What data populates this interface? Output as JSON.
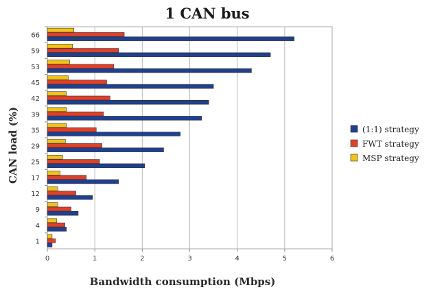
{
  "chart_data": {
    "type": "bar",
    "orientation": "horizontal",
    "title": "1 CAN bus",
    "xlabel": "Bandwidth consumption (Mbps)",
    "ylabel": "CAN load (%)",
    "categories": [
      "1",
      "4",
      "9",
      "12",
      "17",
      "25",
      "29",
      "35",
      "39",
      "42",
      "45",
      "53",
      "59",
      "66"
    ],
    "xlim": [
      0,
      6
    ],
    "xticks": [
      "0",
      "1",
      "2",
      "3",
      "4",
      "5",
      "6"
    ],
    "grid": true,
    "legend_position": "right",
    "series": [
      {
        "name": "(1:1) strategy",
        "color": "#1f3f8f",
        "values": [
          0.1,
          0.4,
          0.65,
          0.95,
          1.5,
          2.05,
          2.45,
          2.8,
          3.25,
          3.4,
          3.5,
          4.3,
          4.7,
          5.2
        ]
      },
      {
        "name": "FWT strategy",
        "color": "#e0402a",
        "values": [
          0.17,
          0.37,
          0.5,
          0.6,
          0.82,
          1.1,
          1.15,
          1.03,
          1.18,
          1.32,
          1.25,
          1.4,
          1.5,
          1.62
        ]
      },
      {
        "name": "MSP strategy",
        "color": "#f2c21c",
        "values": [
          0.1,
          0.2,
          0.22,
          0.22,
          0.27,
          0.32,
          0.38,
          0.4,
          0.4,
          0.4,
          0.44,
          0.47,
          0.53,
          0.56
        ]
      }
    ]
  }
}
